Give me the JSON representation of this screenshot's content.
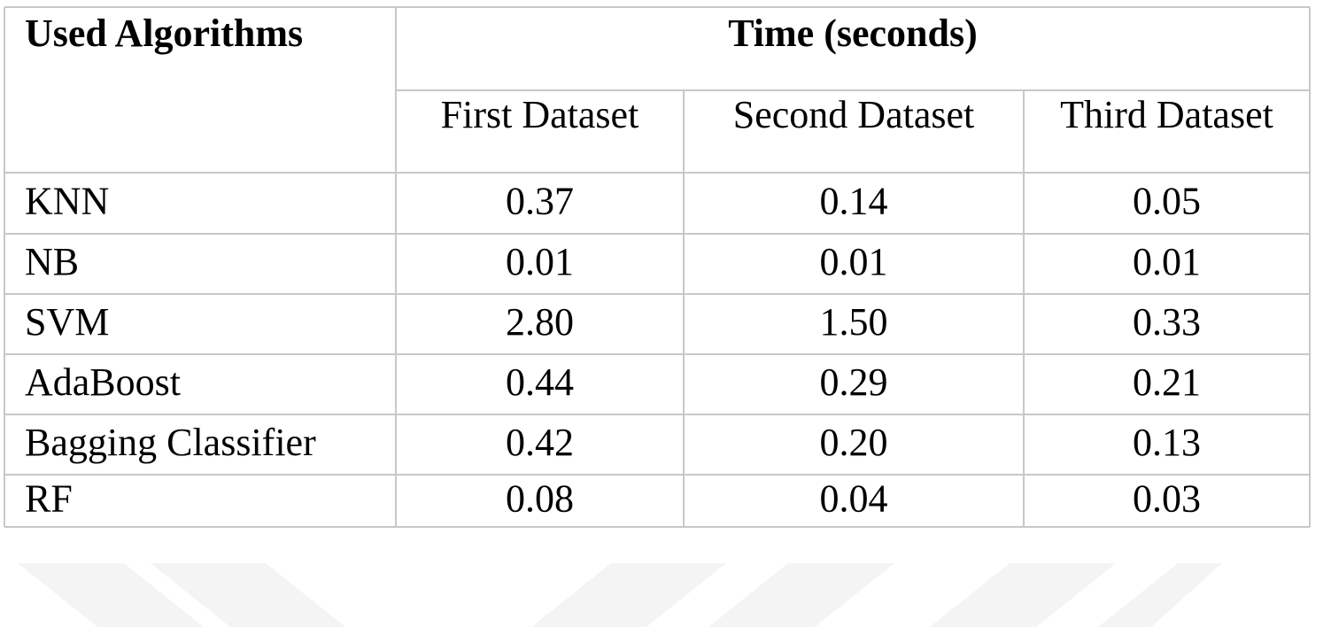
{
  "header": {
    "first_column": "Used Algorithms",
    "group": "Time (seconds)",
    "subcolumns": [
      "First Dataset",
      "Second Dataset",
      "Third Dataset"
    ]
  },
  "table": {
    "rows": [
      [
        "KNN",
        "0.37",
        "0.14",
        "0.05"
      ],
      [
        "NB",
        "0.01",
        "0.01",
        "0.01"
      ],
      [
        "SVM",
        "2.80",
        "1.50",
        "0.33"
      ],
      [
        "AdaBoost",
        "0.44",
        "0.29",
        "0.21"
      ],
      [
        "Bagging Classifier",
        "0.42",
        "0.20",
        "0.13"
      ],
      [
        "RF",
        "0.08",
        "0.04",
        "0.03"
      ]
    ]
  }
}
